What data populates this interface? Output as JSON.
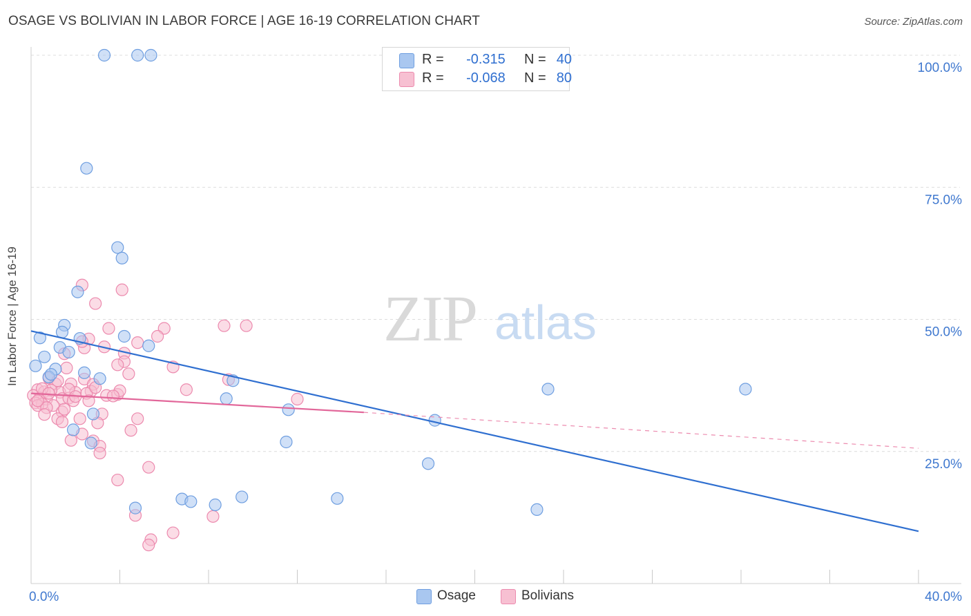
{
  "title": "OSAGE VS BOLIVIAN IN LABOR FORCE | AGE 16-19 CORRELATION CHART",
  "source": "Source: ZipAtlas.com",
  "watermark": {
    "zip": "ZIP",
    "atlas": "atlas"
  },
  "legend": {
    "rows": [
      {
        "r_label": "R =",
        "r_value": "-0.315",
        "n_label": "N =",
        "n_value": "40",
        "color": "#a9c7f0",
        "border": "#6e9ee0"
      },
      {
        "r_label": "R =",
        "r_value": "-0.068",
        "n_label": "N =",
        "n_value": "80",
        "color": "#f7c0d2",
        "border": "#ec8aae"
      }
    ]
  },
  "bottom_legend": [
    {
      "label": "Osage",
      "color": "#a9c7f0",
      "border": "#6e9ee0"
    },
    {
      "label": "Bolivians",
      "color": "#f7c0d2",
      "border": "#ec8aae"
    }
  ],
  "chart_data": {
    "type": "scatter",
    "title": "OSAGE VS BOLIVIAN IN LABOR FORCE | AGE 16-19 CORRELATION CHART",
    "xlabel": "",
    "ylabel": "In Labor Force | Age 16-19",
    "xlim": [
      0,
      40
    ],
    "ylim": [
      0,
      100
    ],
    "x_tick_labels": [
      "0.0%",
      "40.0%"
    ],
    "y_ticks": [
      25,
      50,
      75,
      100
    ],
    "y_tick_labels": [
      "25.0%",
      "50.0%",
      "75.0%",
      "100.0%"
    ],
    "grid": true,
    "legend_position": "top-center",
    "series": [
      {
        "name": "Osage",
        "color": "#6e9ee0",
        "fill": "#a9c7f0",
        "points": [
          [
            3.3,
            100
          ],
          [
            4.8,
            100
          ],
          [
            5.4,
            100
          ],
          [
            2.5,
            78.6
          ],
          [
            3.9,
            63.6
          ],
          [
            4.1,
            61.6
          ],
          [
            2.1,
            55.2
          ],
          [
            1.5,
            48.9
          ],
          [
            0.4,
            46.5
          ],
          [
            1.4,
            47.6
          ],
          [
            2.2,
            46.4
          ],
          [
            4.2,
            46.8
          ],
          [
            1.3,
            44.7
          ],
          [
            5.3,
            45.0
          ],
          [
            0.6,
            42.9
          ],
          [
            1.7,
            43.8
          ],
          [
            0.2,
            41.2
          ],
          [
            1.1,
            40.6
          ],
          [
            2.4,
            39.9
          ],
          [
            3.1,
            38.8
          ],
          [
            0.8,
            39.1
          ],
          [
            0.9,
            39.6
          ],
          [
            8.8,
            35.0
          ],
          [
            9.1,
            38.4
          ],
          [
            11.6,
            32.9
          ],
          [
            18.2,
            30.9
          ],
          [
            23.3,
            36.8
          ],
          [
            32.2,
            36.8
          ],
          [
            2.8,
            32.1
          ],
          [
            1.9,
            29.1
          ],
          [
            2.7,
            26.6
          ],
          [
            11.5,
            26.8
          ],
          [
            17.9,
            22.7
          ],
          [
            4.7,
            14.3
          ],
          [
            6.8,
            16.0
          ],
          [
            7.2,
            15.5
          ],
          [
            8.3,
            14.9
          ],
          [
            9.5,
            16.4
          ],
          [
            13.8,
            16.1
          ],
          [
            22.8,
            14.0
          ]
        ],
        "trend": {
          "x": [
            0,
            40
          ],
          "y": [
            47.8,
            9.9
          ]
        }
      },
      {
        "name": "Bolivians",
        "color": "#ec8aae",
        "fill": "#f7c0d2",
        "points": [
          [
            2.3,
            56.5
          ],
          [
            4.1,
            55.6
          ],
          [
            2.9,
            53.0
          ],
          [
            8.7,
            48.8
          ],
          [
            9.7,
            48.8
          ],
          [
            3.5,
            48.3
          ],
          [
            6.0,
            48.3
          ],
          [
            5.7,
            46.8
          ],
          [
            2.6,
            46.3
          ],
          [
            4.8,
            45.6
          ],
          [
            3.3,
            44.8
          ],
          [
            2.4,
            44.6
          ],
          [
            2.3,
            45.8
          ],
          [
            4.2,
            43.6
          ],
          [
            4.2,
            42.0
          ],
          [
            1.5,
            43.5
          ],
          [
            3.9,
            41.4
          ],
          [
            6.4,
            41.0
          ],
          [
            1.6,
            40.8
          ],
          [
            2.4,
            38.7
          ],
          [
            4.4,
            39.7
          ],
          [
            8.9,
            38.6
          ],
          [
            0.8,
            38.9
          ],
          [
            1.1,
            37.8
          ],
          [
            1.8,
            37.8
          ],
          [
            2.8,
            37.7
          ],
          [
            0.3,
            36.7
          ],
          [
            0.6,
            36.3
          ],
          [
            1.3,
            36.2
          ],
          [
            2.0,
            36.2
          ],
          [
            2.7,
            36.4
          ],
          [
            2.5,
            36.0
          ],
          [
            3.4,
            35.6
          ],
          [
            3.9,
            35.8
          ],
          [
            4.0,
            36.5
          ],
          [
            7.0,
            36.7
          ],
          [
            0.1,
            35.6
          ],
          [
            0.4,
            35.1
          ],
          [
            0.7,
            34.9
          ],
          [
            1.4,
            35.0
          ],
          [
            1.7,
            35.1
          ],
          [
            1.9,
            34.6
          ],
          [
            0.2,
            34.2
          ],
          [
            0.5,
            34.0
          ],
          [
            1.0,
            33.7
          ],
          [
            0.3,
            33.7
          ],
          [
            0.7,
            33.3
          ],
          [
            1.4,
            32.5
          ],
          [
            2.2,
            31.2
          ],
          [
            0.6,
            32.0
          ],
          [
            3.2,
            32.1
          ],
          [
            4.8,
            31.2
          ],
          [
            1.2,
            31.2
          ],
          [
            1.4,
            30.6
          ],
          [
            3.0,
            30.4
          ],
          [
            4.5,
            29.0
          ],
          [
            2.3,
            28.3
          ],
          [
            1.8,
            27.1
          ],
          [
            2.8,
            27.0
          ],
          [
            3.1,
            26.0
          ],
          [
            3.1,
            24.7
          ],
          [
            12.0,
            34.9
          ],
          [
            5.3,
            22.0
          ],
          [
            3.9,
            19.6
          ],
          [
            4.7,
            12.9
          ],
          [
            8.2,
            12.7
          ],
          [
            5.4,
            8.3
          ],
          [
            5.3,
            7.3
          ],
          [
            6.4,
            9.6
          ],
          [
            1.7,
            36.8
          ],
          [
            2.0,
            35.4
          ],
          [
            2.9,
            37.1
          ],
          [
            3.7,
            35.5
          ],
          [
            0.9,
            36.6
          ],
          [
            1.2,
            38.4
          ],
          [
            0.3,
            34.6
          ],
          [
            0.5,
            36.9
          ],
          [
            2.6,
            34.6
          ],
          [
            1.5,
            33.0
          ],
          [
            0.8,
            36.0
          ]
        ],
        "trend": {
          "x": [
            0,
            15
          ],
          "y": [
            36.0,
            32.4
          ]
        },
        "trend_dashed": {
          "x": [
            15,
            40
          ],
          "y": [
            32.4,
            25.6
          ]
        }
      }
    ]
  }
}
